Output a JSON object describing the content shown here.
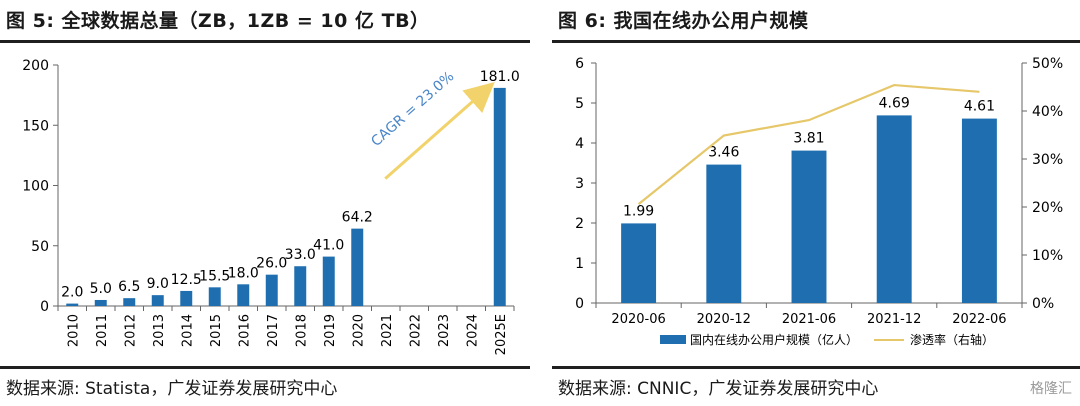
{
  "left": {
    "title": "图 5:  全球数据总量（ZB，1ZB = 10 亿 TB）",
    "source": "数据来源:  Statista，广发证券发展研究中心",
    "annotation": "CAGR = 23.0%"
  },
  "right": {
    "title": "图 6:  我国在线办公用户规模",
    "source": "数据来源:  CNNIC，广发证券发展研究中心"
  },
  "watermark": "格隆汇",
  "chart_data": [
    {
      "type": "bar",
      "title": "",
      "xlabel": "",
      "ylabel": "",
      "categories": [
        "2010",
        "2011",
        "2012",
        "2013",
        "2014",
        "2015",
        "2016",
        "2017",
        "2018",
        "2019",
        "2020",
        "2021",
        "2022",
        "2023",
        "2024",
        "2025E"
      ],
      "values": [
        2.0,
        5.0,
        6.5,
        9.0,
        12.5,
        15.5,
        18.0,
        26.0,
        33.0,
        41.0,
        64.2,
        null,
        null,
        null,
        null,
        181.0
      ],
      "data_labels": [
        "2.0",
        "5.0",
        "6.5",
        "9.0",
        "12.5",
        "15.5",
        "18.0",
        "26.0",
        "33.0",
        "41.0",
        "64.2",
        "",
        "",
        "",
        "",
        "181.0"
      ],
      "ylim": [
        0,
        200
      ],
      "yticks": [
        0,
        50,
        100,
        150,
        200
      ],
      "grid": false,
      "legend": "none",
      "bar_color": "#1f6fb0",
      "annotation": {
        "text": "CAGR = 23.0%",
        "from": "2020",
        "to": "2025E",
        "color": "#4a86c8"
      }
    },
    {
      "type": "bar",
      "title": "",
      "xlabel": "",
      "ylabel": "",
      "categories": [
        "2020-06",
        "2020-12",
        "2021-06",
        "2021-12",
        "2022-06"
      ],
      "series": [
        {
          "name": "国内在线办公用户规模（亿人）",
          "type": "bar",
          "axis": "left",
          "color": "#1f6fb0",
          "values": [
            1.99,
            3.46,
            3.81,
            4.69,
            4.61
          ],
          "labels": [
            "1.99",
            "3.46",
            "3.81",
            "4.69",
            "4.61"
          ]
        },
        {
          "name": "渗透率（右轴）",
          "type": "line",
          "axis": "right",
          "color": "#e6c76a",
          "values": [
            20.6,
            34.9,
            38.1,
            45.4,
            44.0
          ]
        }
      ],
      "ylim_left": [
        0,
        6
      ],
      "yticks_left": [
        0,
        1,
        2,
        3,
        4,
        5,
        6
      ],
      "ylim_right": [
        0,
        50
      ],
      "yticks_right": [
        "0%",
        "10%",
        "20%",
        "30%",
        "40%",
        "50%"
      ],
      "grid": false,
      "legend": "bottom-center"
    }
  ]
}
